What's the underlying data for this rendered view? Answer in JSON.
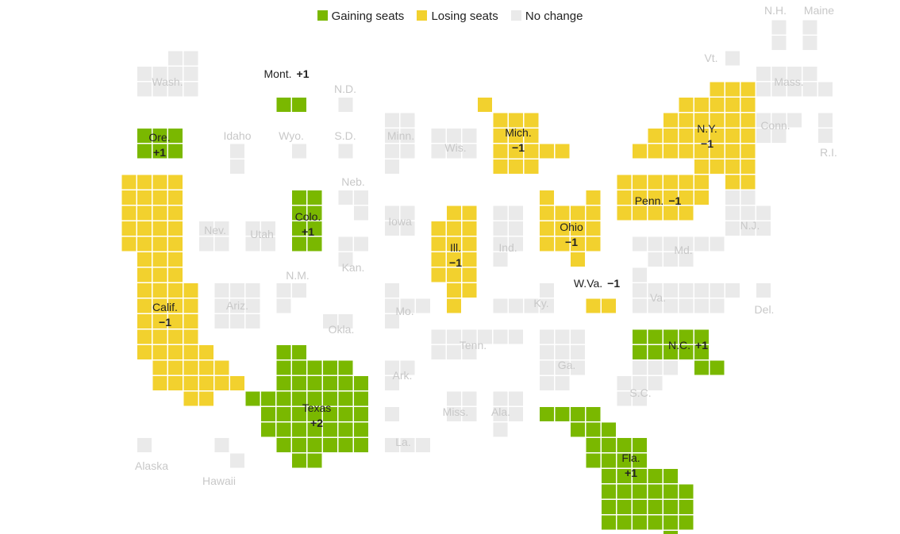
{
  "legend": {
    "gaining": "Gaining seats",
    "losing": "Losing seats",
    "nochange": "No change"
  },
  "colors": {
    "gaining": "#7ab800",
    "losing": "#f2d12e",
    "nochange": "#eaeaea"
  },
  "states": [
    {
      "name": "Alaska",
      "status": "nochange",
      "change": ""
    },
    {
      "name": "Hawaii",
      "status": "nochange",
      "change": ""
    },
    {
      "name": "Wash.",
      "status": "nochange",
      "change": ""
    },
    {
      "name": "Ore.",
      "status": "gaining",
      "change": "+1"
    },
    {
      "name": "Calif.",
      "status": "losing",
      "change": "−1"
    },
    {
      "name": "Nev.",
      "status": "nochange",
      "change": ""
    },
    {
      "name": "Idaho",
      "status": "nochange",
      "change": ""
    },
    {
      "name": "Mont.",
      "status": "gaining",
      "change": "+1"
    },
    {
      "name": "Wyo.",
      "status": "nochange",
      "change": ""
    },
    {
      "name": "Utah",
      "status": "nochange",
      "change": ""
    },
    {
      "name": "Ariz.",
      "status": "nochange",
      "change": ""
    },
    {
      "name": "Colo.",
      "status": "gaining",
      "change": "+1"
    },
    {
      "name": "N.M.",
      "status": "nochange",
      "change": ""
    },
    {
      "name": "N.D.",
      "status": "nochange",
      "change": ""
    },
    {
      "name": "S.D.",
      "status": "nochange",
      "change": ""
    },
    {
      "name": "Neb.",
      "status": "nochange",
      "change": ""
    },
    {
      "name": "Kan.",
      "status": "nochange",
      "change": ""
    },
    {
      "name": "Okla.",
      "status": "nochange",
      "change": ""
    },
    {
      "name": "Texas",
      "status": "gaining",
      "change": "+2"
    },
    {
      "name": "Minn.",
      "status": "nochange",
      "change": ""
    },
    {
      "name": "Iowa",
      "status": "nochange",
      "change": ""
    },
    {
      "name": "Mo.",
      "status": "nochange",
      "change": ""
    },
    {
      "name": "Ark.",
      "status": "nochange",
      "change": ""
    },
    {
      "name": "La.",
      "status": "nochange",
      "change": ""
    },
    {
      "name": "Wis.",
      "status": "nochange",
      "change": ""
    },
    {
      "name": "Ill.",
      "status": "losing",
      "change": "−1"
    },
    {
      "name": "Mich.",
      "status": "losing",
      "change": "−1"
    },
    {
      "name": "Ind.",
      "status": "nochange",
      "change": ""
    },
    {
      "name": "Ohio",
      "status": "losing",
      "change": "−1"
    },
    {
      "name": "Ky.",
      "status": "nochange",
      "change": ""
    },
    {
      "name": "Tenn.",
      "status": "nochange",
      "change": ""
    },
    {
      "name": "Miss.",
      "status": "nochange",
      "change": ""
    },
    {
      "name": "Ala.",
      "status": "nochange",
      "change": ""
    },
    {
      "name": "Ga.",
      "status": "nochange",
      "change": ""
    },
    {
      "name": "Fla.",
      "status": "gaining",
      "change": "+1"
    },
    {
      "name": "S.C.",
      "status": "nochange",
      "change": ""
    },
    {
      "name": "N.C.",
      "status": "gaining",
      "change": "+1"
    },
    {
      "name": "Va.",
      "status": "nochange",
      "change": ""
    },
    {
      "name": "W.Va.",
      "status": "losing",
      "change": "−1"
    },
    {
      "name": "Md.",
      "status": "nochange",
      "change": ""
    },
    {
      "name": "Del.",
      "status": "nochange",
      "change": ""
    },
    {
      "name": "Penn.",
      "status": "losing",
      "change": "−1"
    },
    {
      "name": "N.J.",
      "status": "nochange",
      "change": ""
    },
    {
      "name": "N.Y.",
      "status": "losing",
      "change": "−1"
    },
    {
      "name": "Conn.",
      "status": "nochange",
      "change": ""
    },
    {
      "name": "R.I.",
      "status": "nochange",
      "change": ""
    },
    {
      "name": "Mass.",
      "status": "nochange",
      "change": ""
    },
    {
      "name": "Vt.",
      "status": "nochange",
      "change": ""
    },
    {
      "name": "N.H.",
      "status": "nochange",
      "change": ""
    },
    {
      "name": "Maine",
      "status": "nochange",
      "change": ""
    }
  ]
}
